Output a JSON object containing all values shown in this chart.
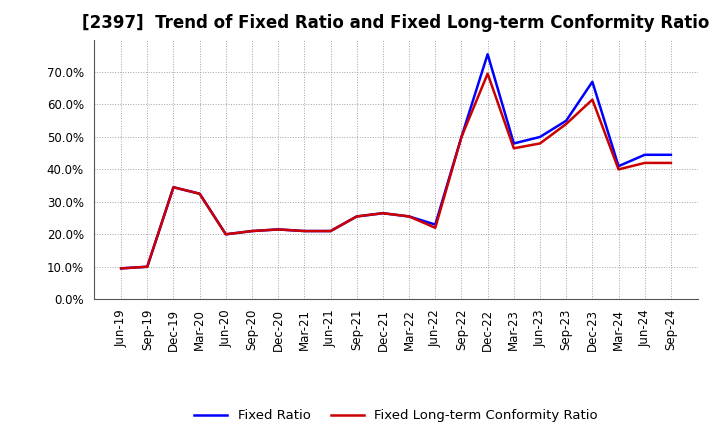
{
  "title": "[2397]  Trend of Fixed Ratio and Fixed Long-term Conformity Ratio",
  "x_labels": [
    "Jun-19",
    "Sep-19",
    "Dec-19",
    "Mar-20",
    "Jun-20",
    "Sep-20",
    "Dec-20",
    "Mar-21",
    "Jun-21",
    "Sep-21",
    "Dec-21",
    "Mar-22",
    "Jun-22",
    "Sep-22",
    "Dec-22",
    "Mar-23",
    "Jun-23",
    "Sep-23",
    "Dec-23",
    "Mar-24",
    "Jun-24",
    "Sep-24"
  ],
  "fixed_ratio": [
    9.5,
    10.0,
    34.5,
    32.5,
    20.0,
    21.0,
    21.5,
    21.0,
    21.0,
    25.5,
    26.5,
    25.5,
    23.0,
    50.0,
    75.5,
    48.0,
    50.0,
    55.0,
    67.0,
    41.0,
    44.5,
    44.5
  ],
  "fixed_lt_conformity": [
    9.5,
    10.0,
    34.5,
    32.5,
    20.0,
    21.0,
    21.5,
    21.0,
    21.0,
    25.5,
    26.5,
    25.5,
    22.0,
    50.0,
    69.5,
    46.5,
    48.0,
    54.0,
    61.5,
    40.0,
    42.0,
    42.0
  ],
  "fixed_ratio_color": "#0000ff",
  "fixed_lt_color": "#cc0000",
  "bg_color": "#ffffff",
  "plot_bg_color": "#ffffff",
  "grid_color": "#999999",
  "ylim": [
    0,
    80
  ],
  "yticks": [
    0,
    10,
    20,
    30,
    40,
    50,
    60,
    70
  ],
  "legend_fixed_ratio": "Fixed Ratio",
  "legend_fixed_lt": "Fixed Long-term Conformity Ratio",
  "title_fontsize": 12,
  "axis_fontsize": 8.5,
  "legend_fontsize": 9.5,
  "linewidth": 1.8
}
